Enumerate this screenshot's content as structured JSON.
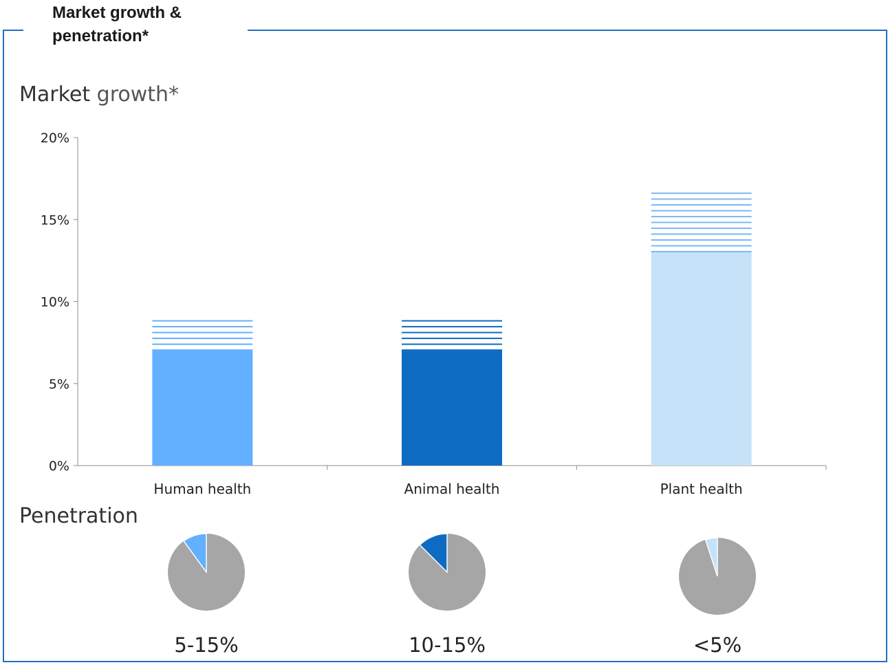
{
  "panel": {
    "title": "Market growth & penetration*",
    "frame_color": "#1f6fc5"
  },
  "market_growth": {
    "title_part1": "Market",
    "title_part2": "growth*"
  },
  "penetration": {
    "title": "Penetration"
  },
  "chart_data": [
    {
      "type": "bar",
      "subtype": "stacked-range",
      "title": "Market growth*",
      "categories": [
        "Human health",
        "Animal health",
        "Plant health"
      ],
      "y_ticks": [
        "0%",
        "5%",
        "10%",
        "15%",
        "20%"
      ],
      "ylim": [
        0,
        20
      ],
      "y_unit": "%",
      "grid": false,
      "series": [
        {
          "values": [
            7,
            7,
            13
          ],
          "fill": "solid"
        },
        {
          "values": [
            2,
            2,
            3.8
          ],
          "fill": "horizontal-stripes"
        }
      ],
      "colors": [
        "#62b0ff",
        "#0e6bc2",
        "#c5e2f9"
      ]
    },
    {
      "type": "pie",
      "title": "Penetration",
      "categories": [
        "Human health",
        "Animal health",
        "Plant health"
      ],
      "labels": [
        "5-15%",
        "10-15%",
        "<5%"
      ],
      "slices": [
        {
          "category": "Human health",
          "value": 10,
          "rest": 90,
          "color": "#62b0ff"
        },
        {
          "category": "Animal health",
          "value": 12.5,
          "rest": 87.5,
          "color": "#0e6bc2"
        },
        {
          "category": "Plant health",
          "value": 5,
          "rest": 95,
          "color": "#c5e2f9"
        }
      ],
      "rest_color": "#a6a6a6"
    }
  ]
}
